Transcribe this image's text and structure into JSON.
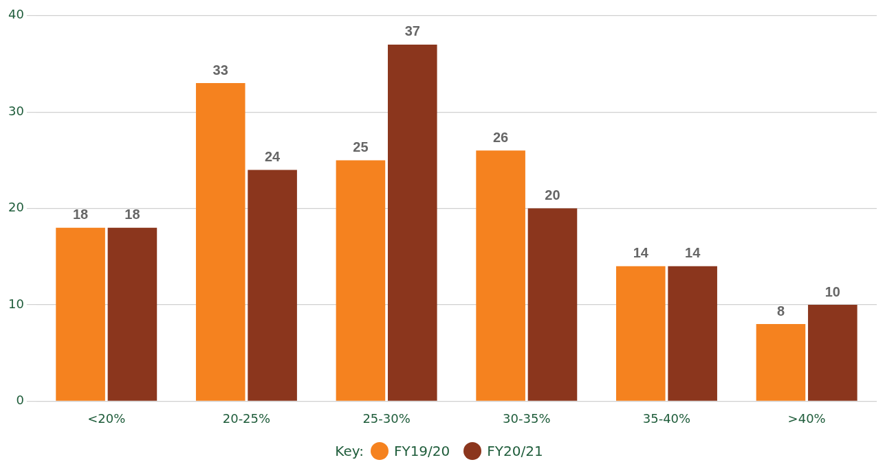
{
  "chart_data": {
    "type": "bar",
    "categories": [
      "<20%",
      "20-25%",
      "25-30%",
      "30-35%",
      "35-40%",
      ">40%"
    ],
    "series": [
      {
        "name": "FY19/20",
        "color": "#f5821f",
        "values": [
          18,
          33,
          25,
          26,
          14,
          8
        ]
      },
      {
        "name": "FY20/21",
        "color": "#8b361d",
        "values": [
          18,
          24,
          37,
          20,
          14,
          10
        ]
      }
    ],
    "ylim": [
      0,
      40
    ],
    "yticks": [
      0,
      10,
      20,
      30,
      40
    ],
    "grid": "y",
    "data_labels": true,
    "legend": "bottom",
    "legend_title": "Key:"
  }
}
